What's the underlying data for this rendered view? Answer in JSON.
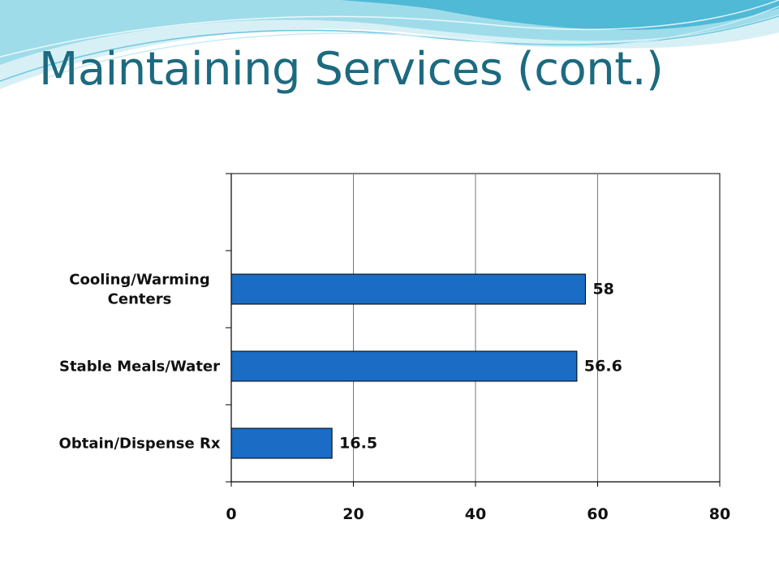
{
  "slide": {
    "title": "Maintaining Services (cont.)",
    "colors": {
      "title": "#1c6a80",
      "wave_light": "#bfe6f0",
      "wave_mid": "#7ccfe3",
      "wave_dark": "#3ab0cf"
    }
  },
  "chart_data": {
    "type": "bar",
    "orientation": "horizontal",
    "categories": [
      "Cooling/Warming Centers",
      "Stable Meals/Water",
      "Obtain/Dispense Rx"
    ],
    "category_lines": [
      [
        "Cooling/Warming",
        "Centers"
      ],
      [
        "Stable Meals/Water"
      ],
      [
        "Obtain/Dispense Rx"
      ]
    ],
    "values": [
      58,
      56.6,
      16.5
    ],
    "data_labels": [
      "58",
      "56.6",
      "16.5"
    ],
    "xlim": [
      0,
      80
    ],
    "xticks": [
      0,
      20,
      40,
      60,
      80
    ],
    "xtick_labels": [
      "0",
      "20",
      "40",
      "60",
      "80"
    ],
    "empty_top_slots": 1,
    "grid": "vertical",
    "legend": "none",
    "bar_color": "#1a6cc4",
    "bar_edge": "#000000"
  }
}
